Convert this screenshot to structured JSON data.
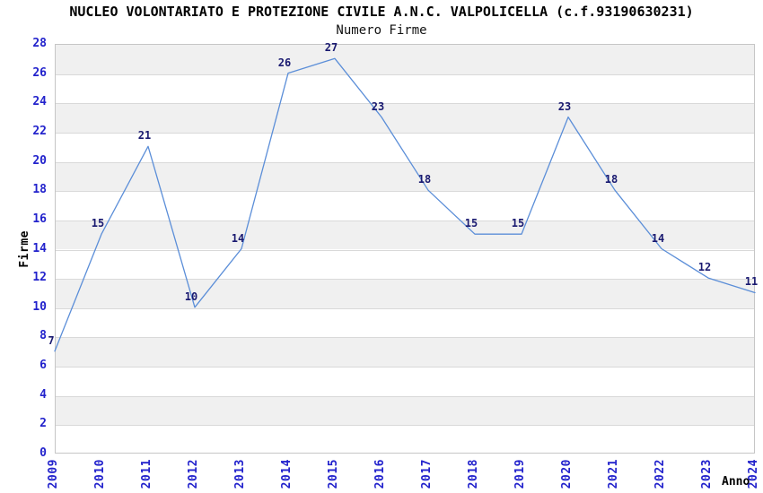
{
  "chart_data": {
    "type": "line",
    "title": "NUCLEO VOLONTARIATO E PROTEZIONE CIVILE A.N.C. VALPOLICELLA (c.f.93190630231)",
    "subtitle": "Numero Firme",
    "xlabel": "Anno",
    "ylabel": "Firme",
    "x": [
      2009,
      2010,
      2011,
      2012,
      2013,
      2014,
      2015,
      2016,
      2017,
      2018,
      2019,
      2020,
      2021,
      2022,
      2023,
      2024
    ],
    "values": [
      7,
      15,
      21,
      10,
      14,
      26,
      27,
      23,
      18,
      15,
      15,
      23,
      18,
      14,
      12,
      11
    ],
    "ylim": [
      0,
      28
    ],
    "ytick_step": 2,
    "point_labels": true,
    "grid": "alternating-horizontal-bands",
    "legend_position": "none",
    "colors": {
      "line": "#5b8ed8",
      "axis_tick_labels": "#2222cc",
      "point_labels": "#191970",
      "band": "#f0f0f0",
      "gridline": "#d9d9d9",
      "plot_border": "#c6c6c6",
      "title": "#000000"
    }
  }
}
